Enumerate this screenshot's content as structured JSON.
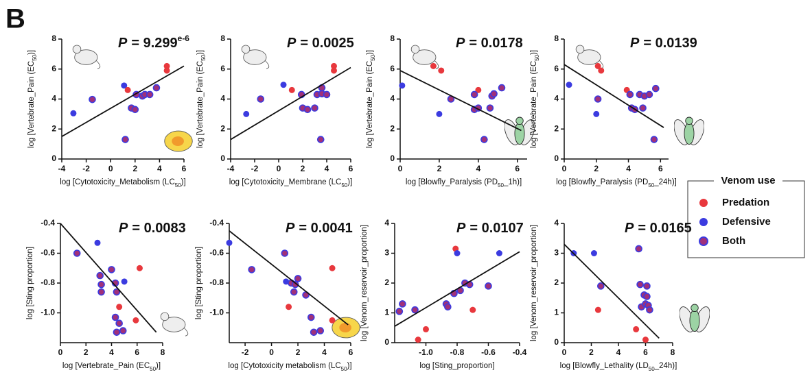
{
  "panel_label": "B",
  "legend": {
    "title": "Venom use",
    "items": [
      {
        "name": "Predation",
        "color": "#e8383d"
      },
      {
        "name": "Defensive",
        "color": "#3b3be0"
      },
      {
        "name": "Both",
        "color": "#a0307a",
        "edge": "#3b3be0"
      }
    ]
  },
  "chart_data": [
    {
      "type": "scatter",
      "annotation": [
        "P",
        "= 9.299",
        "e-6"
      ],
      "xlabel": [
        "log [Cytotoxicity_Metabolism (LC",
        "50",
        ")]"
      ],
      "ylabel": [
        "log [Vertebrate_Pain (EC",
        "50",
        ")]"
      ],
      "xlim": [
        -4,
        6
      ],
      "xticks": [
        -4,
        -2,
        0,
        2,
        4,
        6
      ],
      "ylim": [
        0,
        8
      ],
      "yticks": [
        0,
        2,
        4,
        6,
        8
      ],
      "x": [
        -3.05,
        -1.5,
        1.1,
        1.4,
        1.2,
        1.7,
        2.0,
        2.1,
        2.6,
        2.8,
        3.2,
        3.75,
        4.6,
        4.6
      ],
      "y": [
        3.05,
        3.97,
        4.9,
        4.6,
        1.3,
        3.4,
        3.3,
        4.3,
        4.2,
        4.3,
        4.3,
        4.75,
        6.2,
        5.9
      ],
      "group": [
        1,
        2,
        1,
        0,
        2,
        2,
        2,
        2,
        2,
        2,
        2,
        2,
        0,
        0
      ],
      "fit": {
        "x": [
          -4,
          6
        ],
        "y": [
          1.5,
          6.2
        ]
      }
    },
    {
      "type": "scatter",
      "annotation": [
        "P",
        "= 0.0025"
      ],
      "xlabel": [
        "log [Cytotoxicity_Membrane (LC",
        "50",
        ")]"
      ],
      "ylabel": [
        "log [Vertebrate_Pain (EC",
        "50",
        ")]"
      ],
      "xlim": [
        -4,
        6
      ],
      "xticks": [
        -4,
        -2,
        0,
        2,
        4,
        6
      ],
      "ylim": [
        0,
        8
      ],
      "yticks": [
        0,
        2,
        4,
        6,
        8
      ],
      "x": [
        -2.7,
        -1.5,
        0.4,
        1.1,
        1.9,
        2.0,
        2.4,
        3.0,
        3.2,
        3.6,
        3.6,
        4.0,
        3.5,
        4.6,
        4.6
      ],
      "y": [
        3.0,
        4.0,
        4.95,
        4.6,
        4.3,
        3.4,
        3.3,
        3.4,
        4.3,
        4.75,
        4.35,
        4.3,
        1.3,
        6.2,
        5.9
      ],
      "group": [
        1,
        2,
        1,
        0,
        2,
        2,
        2,
        2,
        2,
        2,
        2,
        2,
        2,
        0,
        0
      ],
      "fit": {
        "x": [
          -4,
          6
        ],
        "y": [
          1.3,
          6.1
        ]
      }
    },
    {
      "type": "scatter",
      "annotation": [
        "P",
        "= 0.0178"
      ],
      "xlabel": [
        "log [Blowfly_Paralysis (PD",
        "50",
        "_1h)]"
      ],
      "ylabel": [
        "log [Vertebrate_Pain (EC",
        "50",
        ")]"
      ],
      "xlim": [
        0,
        6.5
      ],
      "xticks": [
        0,
        2,
        4,
        6
      ],
      "ylim": [
        0,
        8
      ],
      "yticks": [
        0,
        2,
        4,
        6,
        8
      ],
      "x": [
        0.1,
        1.7,
        2.1,
        2.0,
        2.6,
        4.0,
        3.8,
        3.8,
        4.0,
        4.7,
        4.8,
        5.2,
        4.3,
        4.6
      ],
      "y": [
        4.9,
        6.2,
        5.9,
        3.0,
        4.0,
        4.6,
        4.3,
        3.3,
        3.4,
        4.2,
        4.35,
        4.75,
        1.3,
        3.4
      ],
      "group": [
        1,
        0,
        0,
        1,
        2,
        0,
        2,
        2,
        2,
        2,
        2,
        2,
        2,
        2
      ],
      "fit": {
        "x": [
          0,
          6.2
        ],
        "y": [
          5.9,
          1.9
        ]
      }
    },
    {
      "type": "scatter",
      "annotation": [
        "P",
        "= 0.0139"
      ],
      "xlabel": [
        "log [Blowfly_Paralysis (PD",
        "50",
        "_24h)]"
      ],
      "ylabel": [
        "log [Vertebrate_Pain (EC",
        "50",
        ")]"
      ],
      "xlim": [
        0,
        6.5
      ],
      "xticks": [
        0,
        2,
        4,
        6
      ],
      "ylim": [
        0,
        8
      ],
      "yticks": [
        0,
        2,
        4,
        6,
        8
      ],
      "x": [
        0.3,
        2.1,
        2.3,
        2.0,
        2.1,
        3.9,
        4.1,
        4.2,
        4.4,
        4.7,
        4.9,
        5.0,
        5.3,
        5.7,
        5.6
      ],
      "y": [
        4.95,
        6.2,
        5.9,
        3.0,
        4.0,
        4.6,
        4.3,
        3.4,
        3.3,
        4.3,
        3.4,
        4.2,
        4.3,
        4.7,
        1.3
      ],
      "group": [
        1,
        0,
        0,
        1,
        2,
        0,
        2,
        2,
        2,
        2,
        2,
        2,
        2,
        2,
        2
      ],
      "fit": {
        "x": [
          0,
          6.2
        ],
        "y": [
          6.3,
          2.1
        ]
      }
    },
    {
      "type": "scatter",
      "annotation": [
        "P",
        "= 0.0083"
      ],
      "xlabel": [
        "log [Vertebrate_Pain (EC",
        "50",
        ")]"
      ],
      "ylabel": [
        "log [Sting proportion]"
      ],
      "xlim": [
        0,
        8
      ],
      "xticks": [
        0,
        2,
        4,
        6,
        8
      ],
      "ylim": [
        -1.2,
        -0.4
      ],
      "yticks": [
        -0.4,
        -0.6,
        -0.8,
        {
          "value": -1,
          "label": "-1.0"
        }
      ],
      "x": [
        1.3,
        2.9,
        3.1,
        3.2,
        3.2,
        4.0,
        4.3,
        4.4,
        4.3,
        4.4,
        4.6,
        4.9,
        4.6,
        5.0,
        6.2,
        5.9
      ],
      "y": [
        -0.6,
        -0.53,
        -0.75,
        -0.81,
        -0.86,
        -0.71,
        -0.8,
        -0.86,
        -1.03,
        -1.13,
        -1.07,
        -1.12,
        -0.96,
        -0.79,
        -0.7,
        -1.05
      ],
      "group": [
        2,
        1,
        2,
        2,
        2,
        2,
        2,
        2,
        2,
        2,
        2,
        2,
        0,
        1,
        0,
        0
      ],
      "fit": {
        "x": [
          0,
          7.5
        ],
        "y": [
          -0.4,
          -1.13
        ]
      }
    },
    {
      "type": "scatter",
      "annotation": [
        "P",
        "= 0.0041"
      ],
      "xlabel": [
        "log [Cytotoxicity metabolism (LC",
        "50",
        ")]"
      ],
      "ylabel": [
        "log [Sting proportion]"
      ],
      "xlim": [
        -3.2,
        6
      ],
      "xticks": [
        -2,
        0,
        2,
        4,
        6
      ],
      "ylim": [
        -1.2,
        -0.4
      ],
      "yticks": [
        -0.4,
        -0.6,
        -0.8,
        {
          "value": -1,
          "label": "-1.0"
        }
      ],
      "x": [
        -3.2,
        -1.5,
        1.0,
        1.1,
        1.3,
        1.5,
        1.7,
        1.8,
        2.0,
        2.6,
        3.0,
        3.2,
        3.7,
        4.6,
        4.6
      ],
      "y": [
        -0.53,
        -0.71,
        -0.6,
        -0.79,
        -0.96,
        -0.8,
        -0.86,
        -0.81,
        -0.77,
        -0.88,
        -1.03,
        -1.13,
        -1.12,
        -0.7,
        -1.05
      ],
      "group": [
        1,
        2,
        2,
        1,
        0,
        2,
        2,
        2,
        2,
        2,
        2,
        2,
        2,
        0,
        0
      ],
      "fit": {
        "x": [
          -3.2,
          5.8
        ],
        "y": [
          -0.45,
          -1.08
        ]
      }
    },
    {
      "type": "scatter",
      "annotation": [
        "P",
        "= 0.0107"
      ],
      "xlabel": [
        "log [Sting_proportion]"
      ],
      "ylabel": [
        "log [Venom_reservoir_proportion]"
      ],
      "xlim": [
        -1.2,
        -0.4
      ],
      "xticks": [
        {
          "value": -1,
          "label": "-1.0"
        },
        -0.8,
        -0.6,
        -0.4
      ],
      "ylim": [
        0,
        4
      ],
      "yticks": [
        0,
        1,
        2,
        3,
        4
      ],
      "x": [
        -1.17,
        -1.15,
        -1.07,
        -1.0,
        -1.05,
        -0.87,
        -0.86,
        -0.82,
        -0.81,
        -0.8,
        -0.78,
        -0.75,
        -0.72,
        -0.7,
        -0.6,
        -0.53
      ],
      "y": [
        1.05,
        1.3,
        1.1,
        0.45,
        0.1,
        1.3,
        1.2,
        1.65,
        3.15,
        3.0,
        1.75,
        2.0,
        1.95,
        1.1,
        1.9,
        3.0
      ],
      "group": [
        2,
        2,
        2,
        0,
        0,
        2,
        2,
        2,
        0,
        1,
        2,
        2,
        2,
        0,
        2,
        1
      ],
      "fit": {
        "x": [
          -1.2,
          -0.4
        ],
        "y": [
          0.55,
          3.05
        ]
      }
    },
    {
      "type": "scatter",
      "annotation": [
        "P",
        "= 0.0165"
      ],
      "xlabel": [
        "log [Blowfly_Lethality (LD",
        "50",
        "_24h)]"
      ],
      "ylabel": [
        "log [Venom_reservoir_proportion]"
      ],
      "xlim": [
        0,
        8
      ],
      "xticks": [
        0,
        2,
        4,
        6,
        8
      ],
      "ylim": [
        0,
        4
      ],
      "yticks": [
        0,
        1,
        2,
        3,
        4
      ],
      "x": [
        0.7,
        2.2,
        2.7,
        2.5,
        5.3,
        5.5,
        6.0,
        5.6,
        5.7,
        5.9,
        6.0,
        6.1,
        6.1,
        6.2,
        6.3
      ],
      "y": [
        3.0,
        3.0,
        1.9,
        1.1,
        0.45,
        3.15,
        0.1,
        1.95,
        1.2,
        1.6,
        1.3,
        1.9,
        1.55,
        1.25,
        1.1
      ],
      "group": [
        1,
        1,
        2,
        0,
        0,
        2,
        0,
        2,
        2,
        2,
        2,
        2,
        2,
        2,
        2
      ],
      "fit": {
        "x": [
          0,
          7
        ],
        "y": [
          3.3,
          0.15
        ]
      }
    }
  ]
}
